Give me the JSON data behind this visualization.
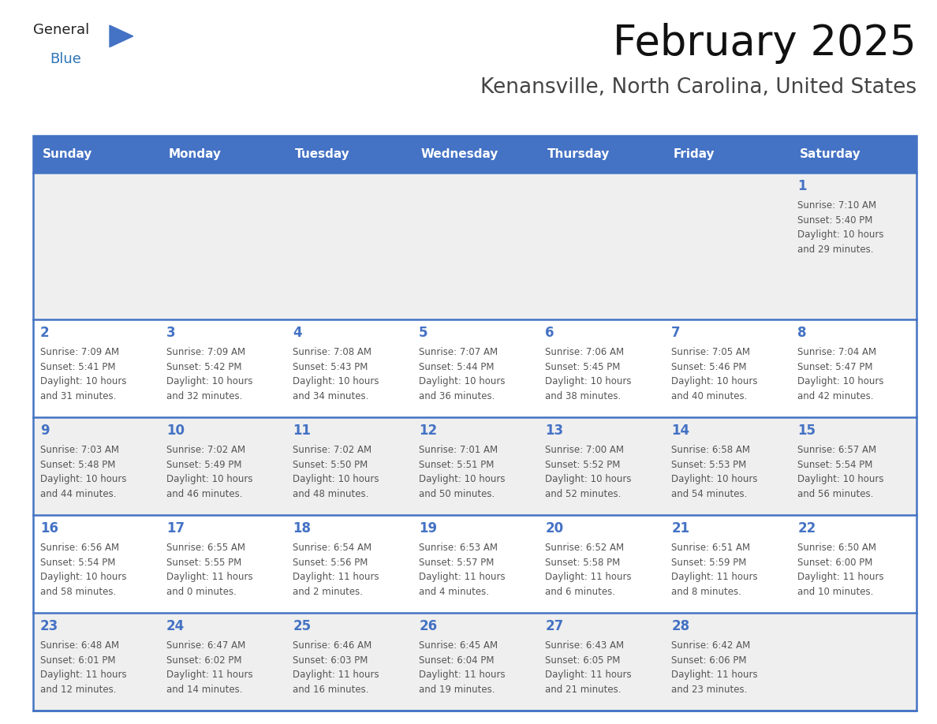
{
  "title": "February 2025",
  "subtitle": "Kenansville, North Carolina, United States",
  "header_bg_color": "#4472C4",
  "header_text_color": "#FFFFFF",
  "day_names": [
    "Sunday",
    "Monday",
    "Tuesday",
    "Wednesday",
    "Thursday",
    "Friday",
    "Saturday"
  ],
  "bg_color": "#FFFFFF",
  "row_bg_colors": [
    "#EFEFEF",
    "#FFFFFF",
    "#EFEFEF",
    "#FFFFFF",
    "#EFEFEF"
  ],
  "border_color": "#4472C4",
  "day_num_color": "#4472C4",
  "text_color": "#555555",
  "title_color": "#111111",
  "subtitle_color": "#444444",
  "logo_general_color": "#222222",
  "logo_blue_color": "#2E74B5",
  "logo_triangle_color": "#4472C4",
  "weeks": [
    [
      {
        "day": 0,
        "info": ""
      },
      {
        "day": 0,
        "info": ""
      },
      {
        "day": 0,
        "info": ""
      },
      {
        "day": 0,
        "info": ""
      },
      {
        "day": 0,
        "info": ""
      },
      {
        "day": 0,
        "info": ""
      },
      {
        "day": 1,
        "info": "Sunrise: 7:10 AM\nSunset: 5:40 PM\nDaylight: 10 hours\nand 29 minutes."
      }
    ],
    [
      {
        "day": 2,
        "info": "Sunrise: 7:09 AM\nSunset: 5:41 PM\nDaylight: 10 hours\nand 31 minutes."
      },
      {
        "day": 3,
        "info": "Sunrise: 7:09 AM\nSunset: 5:42 PM\nDaylight: 10 hours\nand 32 minutes."
      },
      {
        "day": 4,
        "info": "Sunrise: 7:08 AM\nSunset: 5:43 PM\nDaylight: 10 hours\nand 34 minutes."
      },
      {
        "day": 5,
        "info": "Sunrise: 7:07 AM\nSunset: 5:44 PM\nDaylight: 10 hours\nand 36 minutes."
      },
      {
        "day": 6,
        "info": "Sunrise: 7:06 AM\nSunset: 5:45 PM\nDaylight: 10 hours\nand 38 minutes."
      },
      {
        "day": 7,
        "info": "Sunrise: 7:05 AM\nSunset: 5:46 PM\nDaylight: 10 hours\nand 40 minutes."
      },
      {
        "day": 8,
        "info": "Sunrise: 7:04 AM\nSunset: 5:47 PM\nDaylight: 10 hours\nand 42 minutes."
      }
    ],
    [
      {
        "day": 9,
        "info": "Sunrise: 7:03 AM\nSunset: 5:48 PM\nDaylight: 10 hours\nand 44 minutes."
      },
      {
        "day": 10,
        "info": "Sunrise: 7:02 AM\nSunset: 5:49 PM\nDaylight: 10 hours\nand 46 minutes."
      },
      {
        "day": 11,
        "info": "Sunrise: 7:02 AM\nSunset: 5:50 PM\nDaylight: 10 hours\nand 48 minutes."
      },
      {
        "day": 12,
        "info": "Sunrise: 7:01 AM\nSunset: 5:51 PM\nDaylight: 10 hours\nand 50 minutes."
      },
      {
        "day": 13,
        "info": "Sunrise: 7:00 AM\nSunset: 5:52 PM\nDaylight: 10 hours\nand 52 minutes."
      },
      {
        "day": 14,
        "info": "Sunrise: 6:58 AM\nSunset: 5:53 PM\nDaylight: 10 hours\nand 54 minutes."
      },
      {
        "day": 15,
        "info": "Sunrise: 6:57 AM\nSunset: 5:54 PM\nDaylight: 10 hours\nand 56 minutes."
      }
    ],
    [
      {
        "day": 16,
        "info": "Sunrise: 6:56 AM\nSunset: 5:54 PM\nDaylight: 10 hours\nand 58 minutes."
      },
      {
        "day": 17,
        "info": "Sunrise: 6:55 AM\nSunset: 5:55 PM\nDaylight: 11 hours\nand 0 minutes."
      },
      {
        "day": 18,
        "info": "Sunrise: 6:54 AM\nSunset: 5:56 PM\nDaylight: 11 hours\nand 2 minutes."
      },
      {
        "day": 19,
        "info": "Sunrise: 6:53 AM\nSunset: 5:57 PM\nDaylight: 11 hours\nand 4 minutes."
      },
      {
        "day": 20,
        "info": "Sunrise: 6:52 AM\nSunset: 5:58 PM\nDaylight: 11 hours\nand 6 minutes."
      },
      {
        "day": 21,
        "info": "Sunrise: 6:51 AM\nSunset: 5:59 PM\nDaylight: 11 hours\nand 8 minutes."
      },
      {
        "day": 22,
        "info": "Sunrise: 6:50 AM\nSunset: 6:00 PM\nDaylight: 11 hours\nand 10 minutes."
      }
    ],
    [
      {
        "day": 23,
        "info": "Sunrise: 6:48 AM\nSunset: 6:01 PM\nDaylight: 11 hours\nand 12 minutes."
      },
      {
        "day": 24,
        "info": "Sunrise: 6:47 AM\nSunset: 6:02 PM\nDaylight: 11 hours\nand 14 minutes."
      },
      {
        "day": 25,
        "info": "Sunrise: 6:46 AM\nSunset: 6:03 PM\nDaylight: 11 hours\nand 16 minutes."
      },
      {
        "day": 26,
        "info": "Sunrise: 6:45 AM\nSunset: 6:04 PM\nDaylight: 11 hours\nand 19 minutes."
      },
      {
        "day": 27,
        "info": "Sunrise: 6:43 AM\nSunset: 6:05 PM\nDaylight: 11 hours\nand 21 minutes."
      },
      {
        "day": 28,
        "info": "Sunrise: 6:42 AM\nSunset: 6:06 PM\nDaylight: 11 hours\nand 23 minutes."
      },
      {
        "day": 0,
        "info": ""
      }
    ]
  ],
  "fig_width": 11.88,
  "fig_height": 9.18,
  "dpi": 100
}
